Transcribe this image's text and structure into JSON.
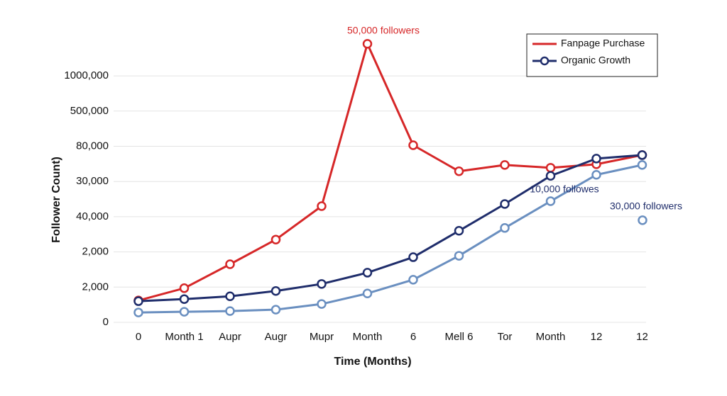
{
  "chart_data": {
    "type": "line",
    "x_label": "Time (Months)",
    "y_label": "Follower Count)",
    "categories": [
      "0",
      "Month 1",
      "Aupr",
      "Augr",
      "Mupr",
      "Month",
      "6",
      "Mell 6",
      "Tor",
      "Month",
      "12",
      "12"
    ],
    "series": [
      {
        "name": "Fanpage Purchase",
        "color": "#d62728",
        "values": [
          0.62,
          0.97,
          1.65,
          2.35,
          3.3,
          7.91,
          5.03,
          4.29,
          4.47,
          4.39,
          4.49,
          4.75
        ]
      },
      {
        "name": "Organic Growth",
        "color": "#1f2d6b",
        "values": [
          0.6,
          0.66,
          0.74,
          0.89,
          1.09,
          1.41,
          1.85,
          2.6,
          3.36,
          4.16,
          4.65,
          4.75
        ]
      },
      {
        "color": "#6a8fc0",
        "values": [
          0.28,
          0.3,
          0.32,
          0.36,
          0.52,
          0.82,
          1.21,
          1.89,
          2.68,
          3.44,
          4.19,
          4.47
        ]
      }
    ],
    "ylim": [
      0,
      8
    ],
    "yticks": [
      0,
      {
        "value": 1,
        "label": "2,000"
      },
      {
        "value": 2,
        "label": "2,000"
      },
      {
        "value": 3,
        "label": "40,000"
      },
      {
        "value": 4,
        "label": "30,000"
      },
      {
        "value": 5,
        "label": "80,000"
      },
      {
        "value": 6,
        "label": "500,000"
      },
      {
        "value": 7,
        "label": "1000,000"
      }
    ],
    "grid": true,
    "legend": "upper right",
    "annotations": [
      {
        "text": "50,000 followers",
        "color": "#d62728"
      },
      {
        "text": "10,000 followes",
        "color": "#1f2d6b"
      },
      {
        "text": "30,000 followers",
        "color": "#1f2d6b",
        "value": 2.9,
        "marker_color": "#6a8fc0"
      }
    ]
  }
}
